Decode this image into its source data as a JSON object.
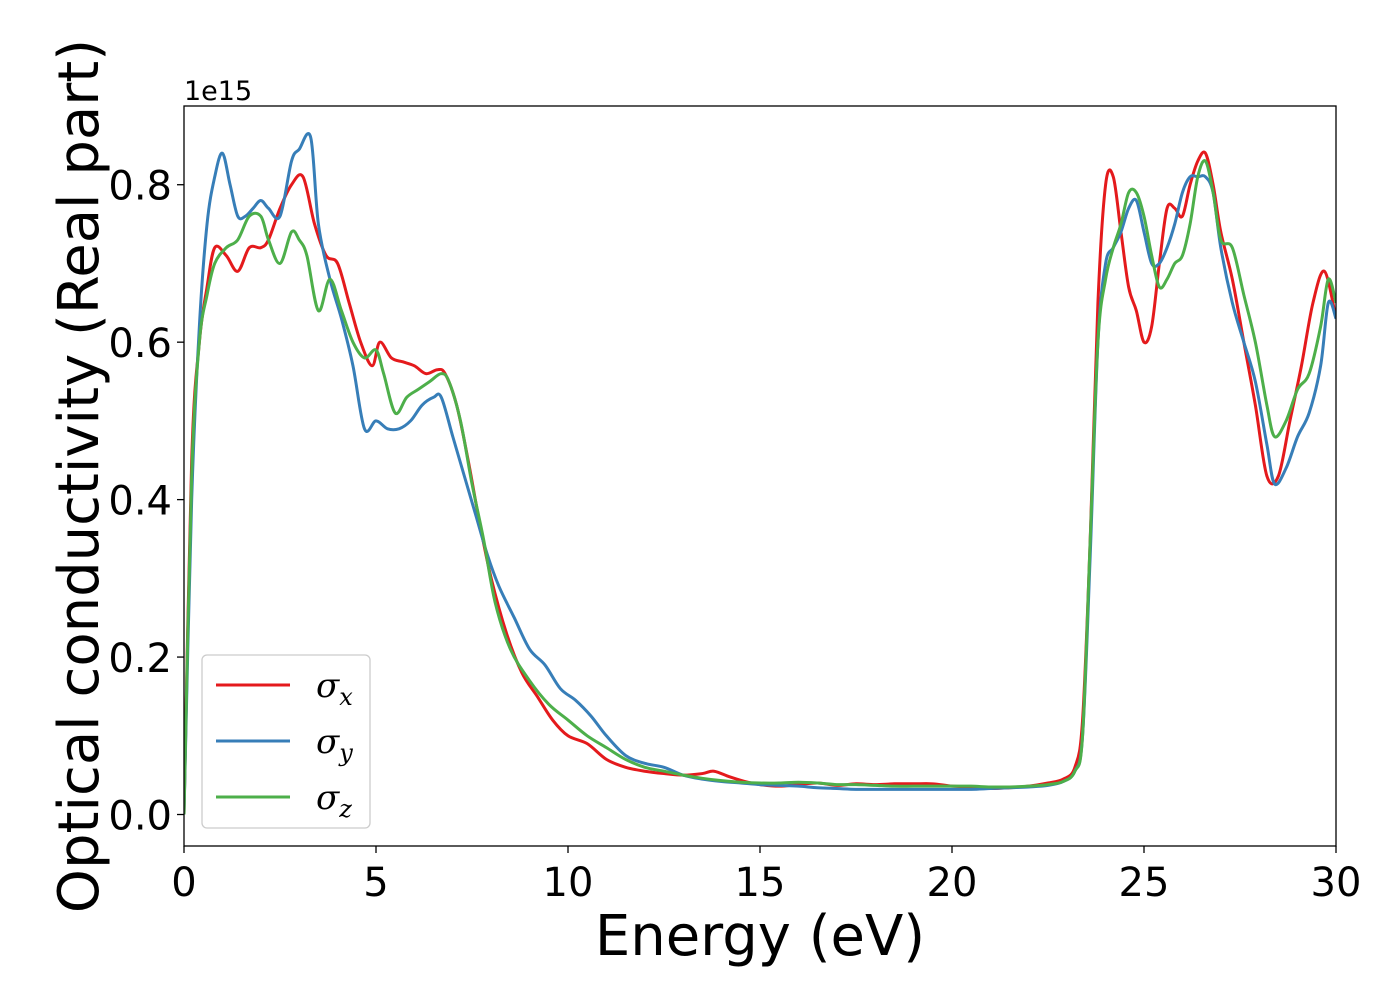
{
  "chart_data": {
    "type": "line",
    "xlabel": "Energy (eV)",
    "ylabel": "Optical conductivity (Real part)",
    "y_offset_text": "1e15",
    "xlim": [
      0,
      30
    ],
    "ylim": [
      -0.04,
      0.9
    ],
    "x_ticks": [
      0,
      5,
      10,
      15,
      20,
      25,
      30
    ],
    "x_tick_labels": [
      "0",
      "5",
      "10",
      "15",
      "20",
      "25",
      "30"
    ],
    "y_ticks": [
      0.0,
      0.2,
      0.4,
      0.6,
      0.8
    ],
    "y_tick_labels": [
      "0.0",
      "0.2",
      "0.4",
      "0.6",
      "0.8"
    ],
    "grid": false,
    "legend_position": "lower-left",
    "series": [
      {
        "name": "σx",
        "symbol": "σ",
        "subscript": "x",
        "color": "#e41a1c",
        "x": [
          0,
          0.2,
          0.4,
          0.6,
          0.8,
          1.1,
          1.4,
          1.7,
          2.0,
          2.2,
          2.5,
          2.8,
          3.1,
          3.4,
          3.7,
          4.0,
          4.3,
          4.6,
          4.9,
          5.1,
          5.4,
          5.7,
          6.0,
          6.3,
          6.6,
          6.8,
          7.1,
          7.4,
          7.7,
          8.0,
          8.4,
          8.8,
          9.2,
          9.6,
          10.0,
          10.5,
          11.0,
          11.5,
          12.0,
          12.5,
          13.0,
          13.5,
          13.8,
          14.2,
          14.6,
          15.0,
          15.5,
          16.0,
          16.5,
          17.0,
          17.5,
          18.0,
          18.5,
          19.0,
          19.5,
          20.0,
          20.5,
          21.0,
          21.5,
          22.0,
          22.5,
          22.9,
          23.2,
          23.4,
          23.6,
          23.8,
          24.0,
          24.2,
          24.4,
          24.6,
          24.8,
          25.0,
          25.2,
          25.4,
          25.6,
          25.8,
          26.0,
          26.2,
          26.4,
          26.6,
          26.8,
          27.0,
          27.3,
          27.6,
          27.9,
          28.2,
          28.5,
          28.8,
          29.1,
          29.4,
          29.7,
          30.0
        ],
        "values": [
          0.0,
          0.45,
          0.6,
          0.67,
          0.72,
          0.71,
          0.69,
          0.72,
          0.72,
          0.73,
          0.77,
          0.8,
          0.81,
          0.75,
          0.71,
          0.7,
          0.65,
          0.6,
          0.57,
          0.6,
          0.58,
          0.575,
          0.57,
          0.56,
          0.565,
          0.56,
          0.52,
          0.45,
          0.37,
          0.3,
          0.23,
          0.18,
          0.15,
          0.12,
          0.1,
          0.09,
          0.07,
          0.06,
          0.055,
          0.052,
          0.05,
          0.052,
          0.055,
          0.048,
          0.042,
          0.038,
          0.036,
          0.038,
          0.04,
          0.037,
          0.039,
          0.038,
          0.039,
          0.039,
          0.039,
          0.036,
          0.035,
          0.033,
          0.034,
          0.036,
          0.04,
          0.045,
          0.06,
          0.12,
          0.35,
          0.65,
          0.8,
          0.81,
          0.74,
          0.67,
          0.64,
          0.6,
          0.62,
          0.7,
          0.77,
          0.77,
          0.76,
          0.8,
          0.83,
          0.84,
          0.8,
          0.74,
          0.68,
          0.6,
          0.52,
          0.43,
          0.43,
          0.5,
          0.57,
          0.65,
          0.69,
          0.63
        ]
      },
      {
        "name": "σy",
        "symbol": "σ",
        "subscript": "y",
        "color": "#377eb8",
        "x": [
          0,
          0.2,
          0.4,
          0.6,
          0.8,
          1.0,
          1.2,
          1.4,
          1.6,
          1.8,
          2.0,
          2.2,
          2.5,
          2.8,
          3.0,
          3.3,
          3.5,
          3.8,
          4.1,
          4.4,
          4.7,
          5.0,
          5.3,
          5.6,
          5.9,
          6.2,
          6.5,
          6.7,
          7.0,
          7.3,
          7.6,
          7.9,
          8.2,
          8.6,
          9.0,
          9.4,
          9.8,
          10.2,
          10.6,
          11.0,
          11.5,
          12.0,
          12.5,
          13.0,
          13.5,
          14.0,
          14.5,
          15.0,
          15.5,
          16.0,
          16.5,
          17.0,
          17.5,
          18.0,
          18.5,
          19.0,
          19.5,
          20.0,
          20.5,
          21.0,
          21.5,
          22.0,
          22.5,
          22.9,
          23.2,
          23.4,
          23.6,
          23.8,
          24.0,
          24.2,
          24.4,
          24.6,
          24.8,
          25.0,
          25.2,
          25.4,
          25.6,
          25.8,
          26.0,
          26.2,
          26.4,
          26.6,
          26.8,
          27.0,
          27.3,
          27.6,
          27.9,
          28.2,
          28.4,
          28.7,
          29.0,
          29.3,
          29.6,
          29.8,
          30.0
        ],
        "values": [
          0.0,
          0.4,
          0.62,
          0.75,
          0.81,
          0.84,
          0.8,
          0.76,
          0.76,
          0.77,
          0.78,
          0.77,
          0.76,
          0.83,
          0.845,
          0.86,
          0.75,
          0.68,
          0.63,
          0.57,
          0.49,
          0.5,
          0.49,
          0.49,
          0.5,
          0.52,
          0.53,
          0.53,
          0.48,
          0.43,
          0.38,
          0.33,
          0.29,
          0.25,
          0.21,
          0.19,
          0.16,
          0.145,
          0.125,
          0.1,
          0.075,
          0.065,
          0.06,
          0.05,
          0.045,
          0.042,
          0.04,
          0.038,
          0.037,
          0.036,
          0.034,
          0.033,
          0.032,
          0.032,
          0.032,
          0.032,
          0.032,
          0.032,
          0.032,
          0.033,
          0.034,
          0.035,
          0.037,
          0.042,
          0.055,
          0.1,
          0.33,
          0.6,
          0.7,
          0.72,
          0.74,
          0.77,
          0.78,
          0.74,
          0.7,
          0.7,
          0.72,
          0.75,
          0.79,
          0.81,
          0.81,
          0.81,
          0.79,
          0.72,
          0.65,
          0.6,
          0.55,
          0.47,
          0.42,
          0.44,
          0.48,
          0.51,
          0.57,
          0.65,
          0.63
        ]
      },
      {
        "name": "σz",
        "symbol": "σ",
        "subscript": "z",
        "color": "#4daf4a",
        "x": [
          0,
          0.2,
          0.4,
          0.6,
          0.8,
          1.1,
          1.4,
          1.7,
          2.0,
          2.2,
          2.5,
          2.8,
          3.0,
          3.2,
          3.5,
          3.8,
          4.1,
          4.4,
          4.7,
          5.0,
          5.2,
          5.5,
          5.8,
          6.1,
          6.4,
          6.7,
          6.9,
          7.2,
          7.5,
          7.8,
          8.1,
          8.5,
          9.0,
          9.5,
          10.0,
          10.5,
          11.0,
          11.5,
          12.0,
          12.5,
          13.0,
          13.5,
          14.0,
          14.5,
          15.0,
          15.5,
          16.0,
          16.5,
          17.0,
          17.5,
          18.0,
          18.5,
          19.0,
          19.5,
          20.0,
          20.5,
          21.0,
          21.5,
          22.0,
          22.5,
          22.9,
          23.2,
          23.4,
          23.6,
          23.8,
          24.0,
          24.2,
          24.4,
          24.6,
          24.8,
          25.0,
          25.2,
          25.4,
          25.6,
          25.8,
          26.0,
          26.2,
          26.4,
          26.6,
          26.8,
          27.0,
          27.3,
          27.6,
          27.9,
          28.2,
          28.4,
          28.7,
          29.0,
          29.3,
          29.6,
          29.8,
          30.0
        ],
        "values": [
          0.0,
          0.43,
          0.6,
          0.66,
          0.7,
          0.72,
          0.73,
          0.76,
          0.76,
          0.73,
          0.7,
          0.74,
          0.73,
          0.71,
          0.64,
          0.68,
          0.64,
          0.6,
          0.58,
          0.59,
          0.56,
          0.51,
          0.53,
          0.54,
          0.55,
          0.56,
          0.55,
          0.5,
          0.42,
          0.35,
          0.27,
          0.21,
          0.17,
          0.14,
          0.12,
          0.1,
          0.085,
          0.07,
          0.06,
          0.055,
          0.05,
          0.046,
          0.043,
          0.041,
          0.04,
          0.04,
          0.041,
          0.04,
          0.038,
          0.038,
          0.037,
          0.036,
          0.036,
          0.036,
          0.036,
          0.036,
          0.035,
          0.035,
          0.036,
          0.038,
          0.042,
          0.055,
          0.1,
          0.35,
          0.6,
          0.68,
          0.72,
          0.75,
          0.79,
          0.79,
          0.76,
          0.71,
          0.67,
          0.68,
          0.7,
          0.71,
          0.75,
          0.81,
          0.83,
          0.79,
          0.73,
          0.72,
          0.66,
          0.6,
          0.52,
          0.48,
          0.5,
          0.54,
          0.56,
          0.62,
          0.68,
          0.65
        ]
      }
    ]
  }
}
